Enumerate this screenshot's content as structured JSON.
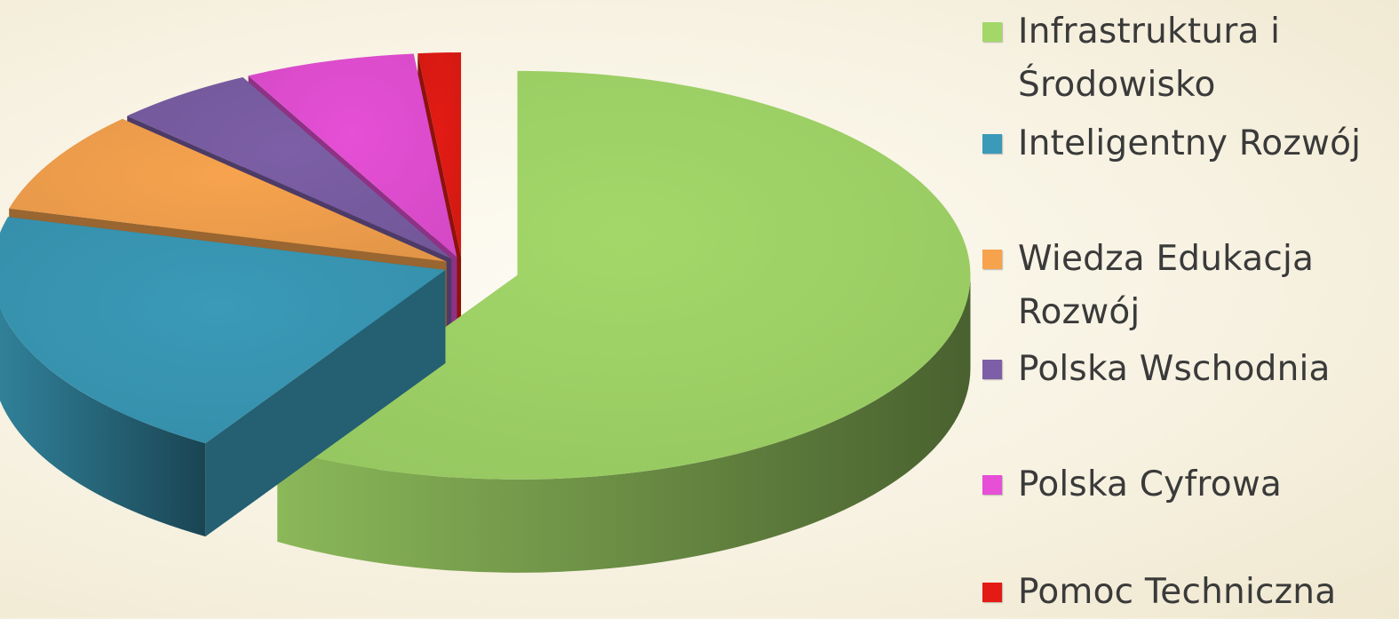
{
  "chart_data": {
    "type": "pie",
    "style": "3d-exploded",
    "title": "",
    "categories": [
      "Infrastruktura i Środowisko",
      "Inteligentny Rozwój",
      "Wiedza Edukacja Rozwój",
      "Polska Wschodnia",
      "Polska Cyfrowa",
      "Pomoc Techniczna"
    ],
    "values": [
      58,
      20,
      8,
      5,
      6,
      1.5
    ],
    "colors": [
      "#a3d869",
      "#3a9ab8",
      "#f7a34e",
      "#7c5fa6",
      "#e64fd6",
      "#e31b14"
    ],
    "legend_position": "right"
  },
  "legend": {
    "items": [
      {
        "lines": [
          "Infrastruktura i",
          "Środowisko"
        ]
      },
      {
        "lines": [
          "Inteligentny Rozwój"
        ]
      },
      {
        "lines": [
          "Wiedza Edukacja",
          "Rozwój"
        ]
      },
      {
        "lines": [
          "Polska Wschodnia"
        ]
      },
      {
        "lines": [
          "Polska Cyfrowa"
        ]
      },
      {
        "lines": [
          "Pomoc Techniczna"
        ]
      }
    ]
  }
}
